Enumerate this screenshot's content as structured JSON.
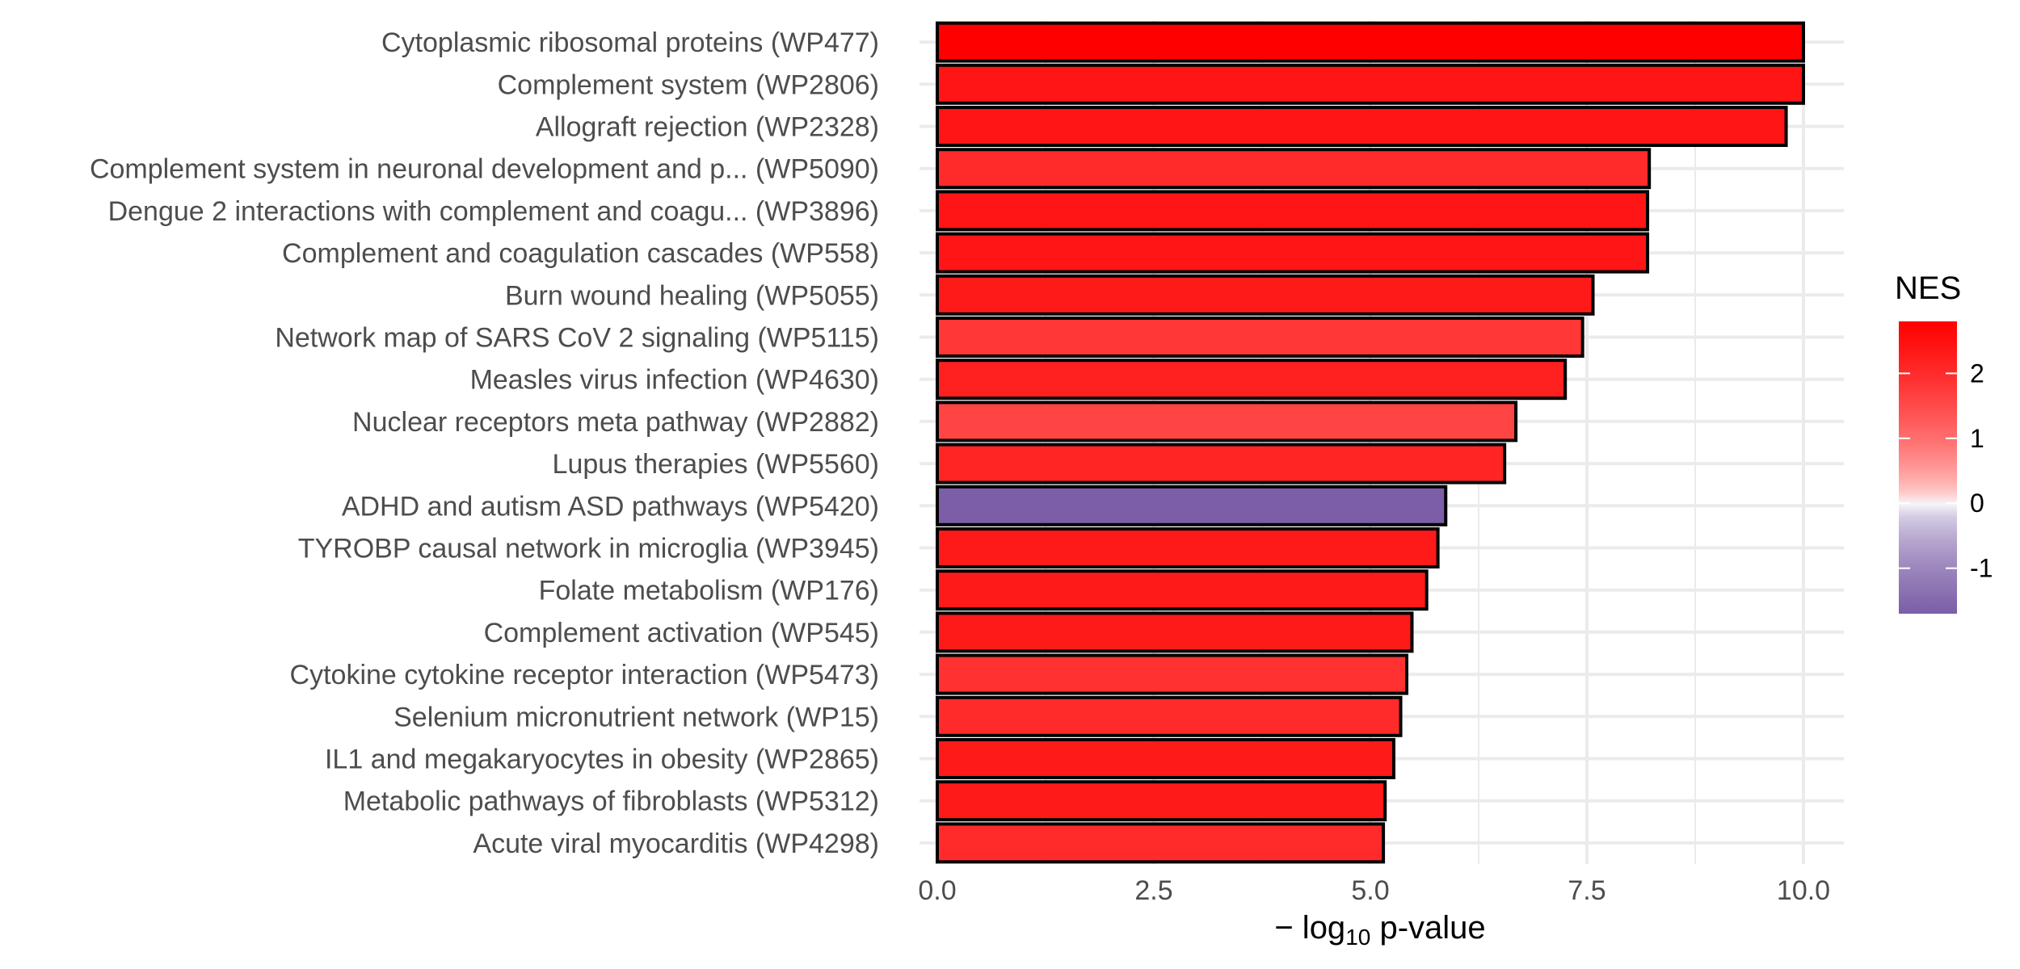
{
  "chart_data": {
    "type": "bar",
    "orientation": "horizontal",
    "title": "",
    "xlabel_prefix": "− log",
    "xlabel_sub": "10",
    "xlabel_suffix": " p-value",
    "ylabel": "",
    "xlim": [
      0,
      10.5
    ],
    "xticks": [
      0,
      2.5,
      5,
      7.5,
      10
    ],
    "xtick_labels": [
      "0.0",
      "2.5",
      "5.0",
      "7.5",
      "10.0"
    ],
    "grid": true,
    "categories": [
      "Cytoplasmic ribosomal proteins (WP477)",
      "Complement system (WP2806)",
      "Allograft rejection (WP2328)",
      "Complement system in neuronal development and p... (WP5090)",
      "Dengue 2 interactions with complement and coagu... (WP3896)",
      "Complement and coagulation cascades (WP558)",
      "Burn wound healing (WP5055)",
      "Network map of SARS CoV 2 signaling (WP5115)",
      "Measles virus infection (WP4630)",
      "Nuclear receptors meta pathway (WP2882)",
      "Lupus therapies (WP5560)",
      "ADHD and autism ASD pathways (WP5420)",
      "TYROBP causal network in microglia (WP3945)",
      "Folate metabolism (WP176)",
      "Complement activation (WP545)",
      "Cytokine cytokine receptor interaction (WP5473)",
      "Selenium micronutrient network (WP15)",
      "IL1 and megakaryocytes in obesity (WP2865)",
      "Metabolic pathways of fibroblasts (WP5312)",
      "Acute viral myocarditis (WP4298)"
    ],
    "values": [
      10.0,
      10.0,
      9.8,
      8.22,
      8.2,
      8.2,
      7.57,
      7.45,
      7.25,
      6.68,
      6.55,
      5.87,
      5.78,
      5.65,
      5.48,
      5.42,
      5.35,
      5.27,
      5.17,
      5.15
    ],
    "nes": [
      2.8,
      2.4,
      2.4,
      2.0,
      2.4,
      2.4,
      2.3,
      1.8,
      2.2,
      1.6,
      2.1,
      -1.7,
      2.3,
      2.3,
      2.3,
      1.9,
      2.0,
      2.3,
      2.3,
      2.0
    ],
    "legend": {
      "title": "NES",
      "position": "right",
      "range": [
        -1.7,
        2.8
      ],
      "ticks": [
        -1,
        0,
        1,
        2
      ],
      "tick_labels": [
        "-1",
        "0",
        "1",
        "2"
      ],
      "colors": {
        "high": "#ff0000",
        "mid": "#ffffff",
        "low": "#7b5ea7"
      }
    },
    "bar_stroke": "#000000",
    "grid_color": "#ebebeb"
  }
}
